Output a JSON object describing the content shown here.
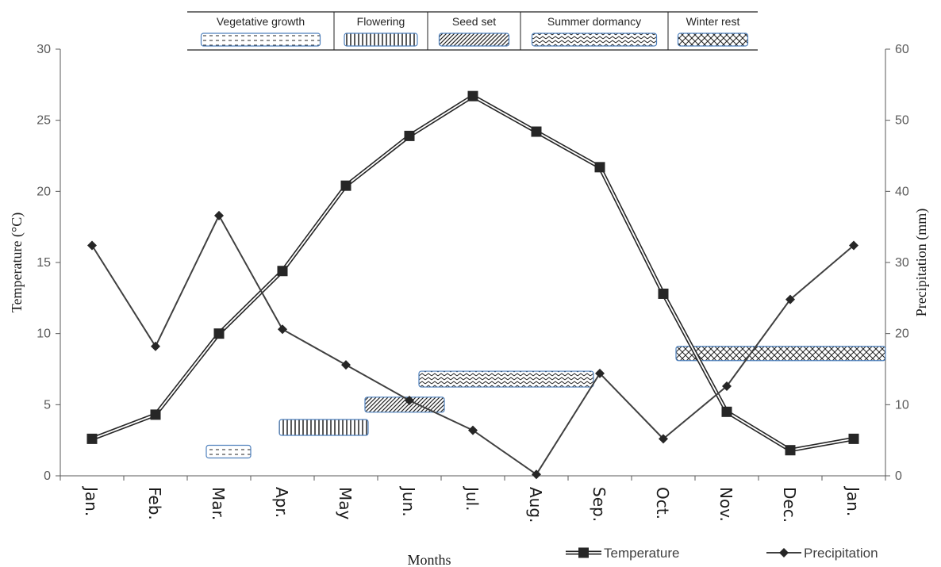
{
  "chart_data": {
    "type": "line",
    "x": [
      "Jan.",
      "Feb.",
      "Mar.",
      "Apr.",
      "May",
      "Jun.",
      "Jul.",
      "Aug.",
      "Sep.",
      "Oct.",
      "Nov.",
      "Dec.",
      "Jan."
    ],
    "xlabel": "Months",
    "ylabel_left": "Temperature (°C)",
    "ylabel_right": "Precipitation (mm)",
    "ylim_left": [
      0,
      30
    ],
    "ylim_right": [
      0,
      60
    ],
    "yticks_left": [
      0,
      5,
      10,
      15,
      20,
      25,
      30
    ],
    "yticks_right": [
      0,
      10,
      20,
      30,
      40,
      50,
      60
    ],
    "grid": false,
    "legend_position": "bottom-right",
    "series": [
      {
        "name": "Temperature",
        "axis": "left",
        "marker": "square",
        "style": "double-line",
        "values": [
          2.6,
          4.3,
          10.0,
          14.4,
          20.4,
          23.9,
          26.7,
          24.2,
          21.7,
          12.8,
          4.5,
          1.8,
          2.6
        ]
      },
      {
        "name": "Precipitation",
        "axis": "right",
        "marker": "diamond",
        "style": "single-line",
        "values": [
          32.4,
          18.2,
          36.6,
          20.6,
          15.6,
          10.6,
          6.4,
          0.2,
          14.4,
          5.2,
          12.6,
          24.8,
          32.4
        ]
      }
    ],
    "phases": [
      {
        "name": "Vegetative growth",
        "pattern": "dashes",
        "start": 1.8,
        "end": 2.5,
        "level": 1.7
      },
      {
        "name": "Flowering",
        "pattern": "vertical",
        "start": 2.95,
        "end": 4.35,
        "level": 3.4
      },
      {
        "name": "Seed set",
        "pattern": "diagonal",
        "start": 4.3,
        "end": 5.55,
        "level": 5.0
      },
      {
        "name": "Summer dormancy",
        "pattern": "zigzag",
        "start": 5.15,
        "end": 7.9,
        "level": 6.8
      },
      {
        "name": "Winter rest",
        "pattern": "crosshatch",
        "start": 9.2,
        "end": 12.5,
        "level": 8.6
      }
    ]
  },
  "colors": {
    "line": "#404040",
    "marker": "#262626",
    "axis": "#595959",
    "phase_border": "#4f81bd"
  }
}
